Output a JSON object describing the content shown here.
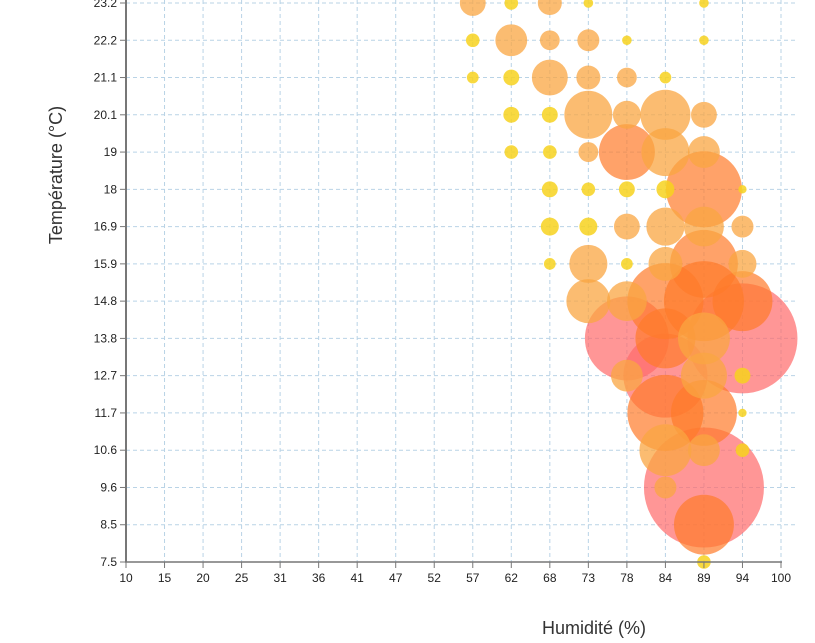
{
  "chart_data": {
    "type": "scatter",
    "subtype": "bubble",
    "title": "",
    "xlabel": "Humidité (%)",
    "ylabel": "Température (°C)",
    "xlim": [
      10,
      100
    ],
    "ylim": [
      7.5,
      23.2
    ],
    "x_ticks": [
      "10",
      "15",
      "20",
      "25",
      "31",
      "36",
      "41",
      "47",
      "52",
      "57",
      "62",
      "68",
      "73",
      "78",
      "84",
      "89",
      "94",
      "100"
    ],
    "x_tick_values": [
      10,
      15,
      20,
      25,
      31,
      36,
      41,
      47,
      52,
      57,
      62,
      68,
      73,
      78,
      84,
      89,
      94,
      100
    ],
    "y_ticks": [
      "7.5",
      "8.5",
      "9.6",
      "10.6",
      "11.7",
      "12.7",
      "13.8",
      "14.8",
      "15.9",
      "16.9",
      "18",
      "19",
      "20.1",
      "21.1",
      "22.2",
      "23.2"
    ],
    "y_tick_values": [
      7.5,
      8.5,
      9.6,
      10.6,
      11.7,
      12.7,
      13.8,
      14.8,
      15.9,
      16.9,
      18,
      19,
      20.1,
      21.1,
      22.2,
      23.2
    ],
    "grid": true,
    "legend": "none",
    "size_encodes": "count",
    "color_scale": [
      "#f7d21e",
      "#f9a642",
      "#ff7a2a",
      "#ff6a6a"
    ],
    "points": [
      {
        "x": 57,
        "y": 23.2,
        "count": 29
      },
      {
        "x": 57,
        "y": 22.2,
        "count": 8
      },
      {
        "x": 57,
        "y": 21.1,
        "count": 6
      },
      {
        "x": 62,
        "y": 23.2,
        "count": 8
      },
      {
        "x": 62,
        "y": 22.2,
        "count": 44
      },
      {
        "x": 62,
        "y": 21.1,
        "count": 11
      },
      {
        "x": 62,
        "y": 20.1,
        "count": 11
      },
      {
        "x": 62,
        "y": 19,
        "count": 8
      },
      {
        "x": 68,
        "y": 23.2,
        "count": 25
      },
      {
        "x": 68,
        "y": 22.2,
        "count": 17
      },
      {
        "x": 68,
        "y": 21.1,
        "count": 56
      },
      {
        "x": 68,
        "y": 20.1,
        "count": 11
      },
      {
        "x": 68,
        "y": 19,
        "count": 8
      },
      {
        "x": 68,
        "y": 18,
        "count": 11
      },
      {
        "x": 68,
        "y": 16.9,
        "count": 14
      },
      {
        "x": 68,
        "y": 15.9,
        "count": 6
      },
      {
        "x": 73,
        "y": 23.2,
        "count": 4
      },
      {
        "x": 73,
        "y": 22.2,
        "count": 21
      },
      {
        "x": 73,
        "y": 21.1,
        "count": 25
      },
      {
        "x": 73,
        "y": 20.1,
        "count": 100
      },
      {
        "x": 73,
        "y": 19,
        "count": 17
      },
      {
        "x": 73,
        "y": 18,
        "count": 8
      },
      {
        "x": 73,
        "y": 16.9,
        "count": 14
      },
      {
        "x": 73,
        "y": 15.9,
        "count": 63
      },
      {
        "x": 73,
        "y": 14.8,
        "count": 84
      },
      {
        "x": 78,
        "y": 22.2,
        "count": 4
      },
      {
        "x": 78,
        "y": 21.1,
        "count": 17
      },
      {
        "x": 78,
        "y": 20.1,
        "count": 34
      },
      {
        "x": 78,
        "y": 19,
        "count": 136
      },
      {
        "x": 78,
        "y": 18,
        "count": 11
      },
      {
        "x": 78,
        "y": 16.9,
        "count": 29
      },
      {
        "x": 78,
        "y": 15.9,
        "count": 6
      },
      {
        "x": 78,
        "y": 14.8,
        "count": 69
      },
      {
        "x": 78,
        "y": 13.8,
        "count": 306
      },
      {
        "x": 78,
        "y": 12.7,
        "count": 44
      },
      {
        "x": 84,
        "y": 21.1,
        "count": 6
      },
      {
        "x": 84,
        "y": 20.1,
        "count": 109
      },
      {
        "x": 84,
        "y": 19,
        "count": 100
      },
      {
        "x": 84,
        "y": 18,
        "count": 14
      },
      {
        "x": 84,
        "y": 16.9,
        "count": 63
      },
      {
        "x": 84,
        "y": 15.9,
        "count": 50
      },
      {
        "x": 84,
        "y": 14.8,
        "count": 251
      },
      {
        "x": 84,
        "y": 13.8,
        "count": 156
      },
      {
        "x": 84,
        "y": 12.7,
        "count": 306
      },
      {
        "x": 84,
        "y": 11.7,
        "count": 251
      },
      {
        "x": 84,
        "y": 10.6,
        "count": 117
      },
      {
        "x": 84,
        "y": 9.6,
        "count": 21
      },
      {
        "x": 89,
        "y": 23.2,
        "count": 4
      },
      {
        "x": 89,
        "y": 22.2,
        "count": 4
      },
      {
        "x": 89,
        "y": 20.1,
        "count": 29
      },
      {
        "x": 89,
        "y": 19,
        "count": 44
      },
      {
        "x": 89,
        "y": 18,
        "count": 251
      },
      {
        "x": 89,
        "y": 16.9,
        "count": 69
      },
      {
        "x": 89,
        "y": 15.9,
        "count": 200
      },
      {
        "x": 89,
        "y": 14.8,
        "count": 278
      },
      {
        "x": 89,
        "y": 13.8,
        "count": 117
      },
      {
        "x": 89,
        "y": 12.7,
        "count": 92
      },
      {
        "x": 89,
        "y": 11.7,
        "count": 189
      },
      {
        "x": 89,
        "y": 10.6,
        "count": 44
      },
      {
        "x": 89,
        "y": 9.6,
        "count": 625
      },
      {
        "x": 89,
        "y": 8.5,
        "count": 156
      },
      {
        "x": 89,
        "y": 7.5,
        "count": 8
      },
      {
        "x": 94,
        "y": 18,
        "count": 3
      },
      {
        "x": 94,
        "y": 16.9,
        "count": 21
      },
      {
        "x": 94,
        "y": 15.9,
        "count": 34
      },
      {
        "x": 94,
        "y": 14.8,
        "count": 156
      },
      {
        "x": 94,
        "y": 13.8,
        "count": 525
      },
      {
        "x": 94,
        "y": 12.7,
        "count": 11
      },
      {
        "x": 94,
        "y": 11.7,
        "count": 3
      },
      {
        "x": 94,
        "y": 10.6,
        "count": 8
      }
    ]
  }
}
